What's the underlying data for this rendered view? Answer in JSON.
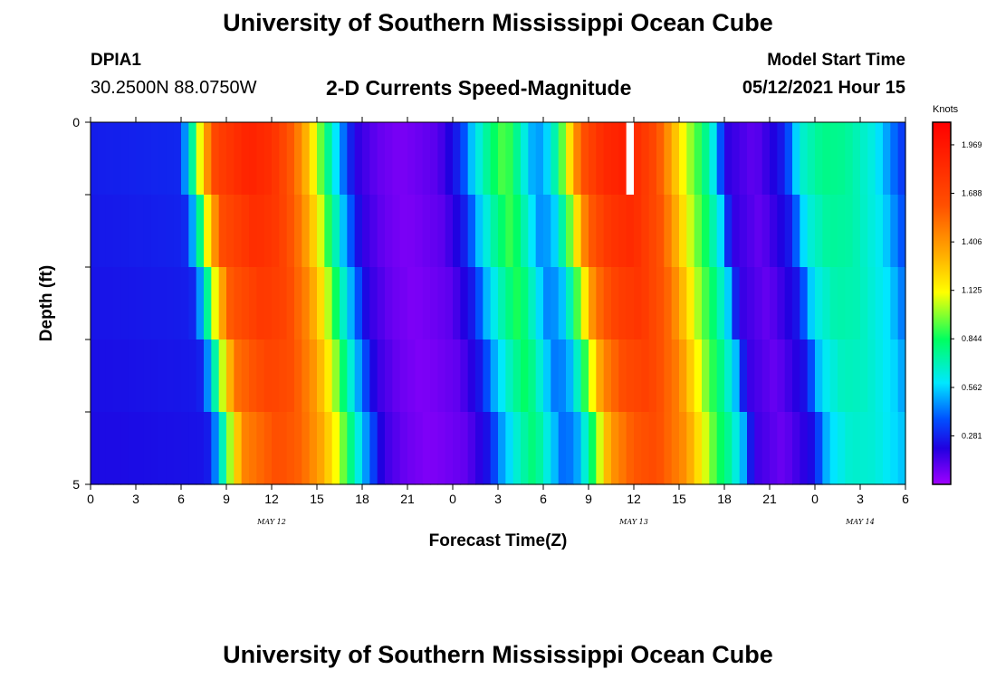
{
  "header": {
    "title_top": "University of Southern Mississippi Ocean Cube",
    "title_bottom": "University of Southern Mississippi Ocean Cube",
    "station_id": "DPIA1",
    "coordinates": "30.2500N  88.0750W",
    "model_start_label": "Model Start Time",
    "model_start_value": "05/12/2021 Hour 15"
  },
  "chart_data": {
    "type": "heatmap",
    "title": "2-D Currents Speed-Magnitude",
    "xlabel": "Forecast Time(Z)",
    "ylabel": "Depth (ft)",
    "x_range_hours": [
      0,
      54
    ],
    "y_range": [
      0,
      5
    ],
    "x_tick_labels": [
      "0",
      "3",
      "6",
      "9",
      "12",
      "15",
      "18",
      "21",
      "0",
      "3",
      "6",
      "9",
      "12",
      "15",
      "18",
      "21",
      "0",
      "3",
      "6"
    ],
    "y_tick_labels": [
      "0",
      "5"
    ],
    "date_labels": [
      {
        "label": "MAY 12",
        "hour": 12
      },
      {
        "label": "MAY 13",
        "hour": 36
      },
      {
        "label": "MAY 14",
        "hour": 51
      }
    ],
    "colorbar": {
      "units": "Knots",
      "min": 0,
      "max": 2.1,
      "tick_values": [
        "1.969",
        "1.688",
        "1.406",
        "1.125",
        "0.844",
        "0.562",
        "0.281"
      ]
    },
    "depth_bins_ft": [
      0.5,
      1.5,
      2.5,
      3.5,
      4.5
    ],
    "speed_profile_knots": [
      {
        "hour": 0,
        "v": 0.27
      },
      {
        "hour": 5.8,
        "v": 0.29
      },
      {
        "hour": 6.3,
        "v": 0.48
      },
      {
        "hour": 7.0,
        "v": 0.9
      },
      {
        "hour": 7.5,
        "v": 1.3
      },
      {
        "hour": 8.3,
        "v": 1.7
      },
      {
        "hour": 10.5,
        "v": 1.9
      },
      {
        "hour": 12.0,
        "v": 1.82
      },
      {
        "hour": 13.5,
        "v": 1.55
      },
      {
        "hour": 14.5,
        "v": 1.25
      },
      {
        "hour": 15.5,
        "v": 0.85
      },
      {
        "hour": 16.5,
        "v": 0.5
      },
      {
        "hour": 17.5,
        "v": 0.2
      },
      {
        "hour": 19.0,
        "v": 0.1
      },
      {
        "hour": 20.5,
        "v": 0.06
      },
      {
        "hour": 21.5,
        "v": 0.08
      },
      {
        "hour": 23.0,
        "v": 0.12
      },
      {
        "hour": 24.5,
        "v": 0.3
      },
      {
        "hour": 25.3,
        "v": 0.55
      },
      {
        "hour": 26.5,
        "v": 0.8
      },
      {
        "hour": 27.5,
        "v": 0.95
      },
      {
        "hour": 28.5,
        "v": 0.7
      },
      {
        "hour": 29.5,
        "v": 0.45
      },
      {
        "hour": 30.5,
        "v": 0.6
      },
      {
        "hour": 31.5,
        "v": 1.05
      },
      {
        "hour": 32.5,
        "v": 1.6
      },
      {
        "hour": 34.0,
        "v": 1.85
      },
      {
        "hour": 35.5,
        "v": 1.92
      },
      {
        "hour": 37.5,
        "v": 1.65
      },
      {
        "hour": 38.5,
        "v": 1.35
      },
      {
        "hour": 39.5,
        "v": 1.05
      },
      {
        "hour": 40.5,
        "v": 0.85
      },
      {
        "hour": 41.5,
        "v": 0.55
      },
      {
        "hour": 42.0,
        "v": 0.2
      },
      {
        "hour": 44.0,
        "v": 0.1
      },
      {
        "hour": 46.0,
        "v": 0.28
      },
      {
        "hour": 47.0,
        "v": 0.65
      },
      {
        "hour": 48.5,
        "v": 0.78
      },
      {
        "hour": 50.0,
        "v": 0.76
      },
      {
        "hour": 52.0,
        "v": 0.62
      },
      {
        "hour": 53.0,
        "v": 0.45
      },
      {
        "hour": 54.0,
        "v": 0.3
      }
    ],
    "depth_lag_hours": [
      0,
      0.4,
      0.9,
      1.4,
      1.9
    ],
    "missing_value_cell": {
      "hour": 35.5,
      "depth_bin_ft": 0.5
    }
  }
}
